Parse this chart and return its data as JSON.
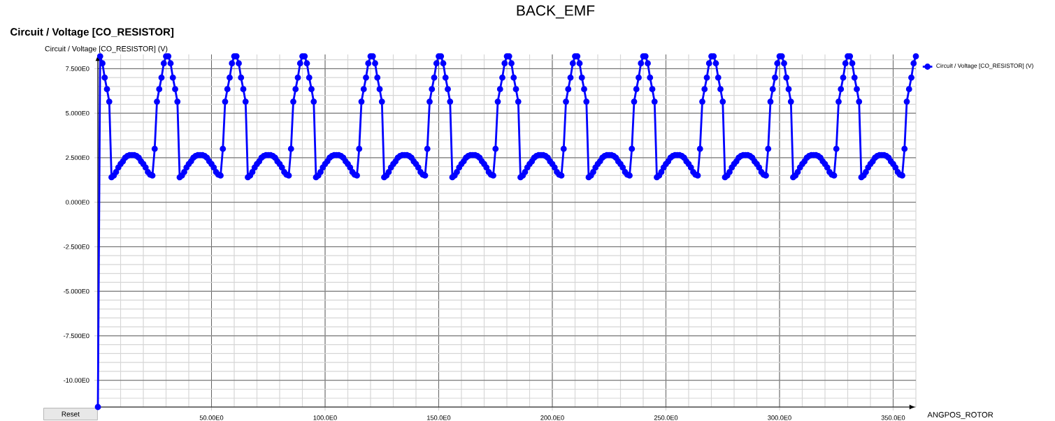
{
  "chart_data": {
    "type": "line",
    "title": "BACK_EMF",
    "subtitle": "Circuit / Voltage [CO_RESISTOR]",
    "ylabel": "Circuit / Voltage [CO_RESISTOR] (V)",
    "xlabel": "ANGPOS_ROTOR",
    "annotations": [
      "Reset"
    ],
    "xlim": [
      0,
      360
    ],
    "ylim": [
      -11.5,
      8.3
    ],
    "xticks": [
      {
        "value": 50,
        "label": "50.00E0"
      },
      {
        "value": 100,
        "label": "100.0E0"
      },
      {
        "value": 150,
        "label": "150.0E0"
      },
      {
        "value": 200,
        "label": "200.0E0"
      },
      {
        "value": 250,
        "label": "250.0E0"
      },
      {
        "value": 300,
        "label": "300.0E0"
      },
      {
        "value": 350,
        "label": "350.0E0"
      }
    ],
    "yticks": [
      {
        "value": -10,
        "label": "-10.00E0"
      },
      {
        "value": -7.5,
        "label": "-7.500E0"
      },
      {
        "value": -5,
        "label": "-5.000E0"
      },
      {
        "value": -2.5,
        "label": "-2.500E0"
      },
      {
        "value": 0,
        "label": "0.000E0"
      },
      {
        "value": 2.5,
        "label": "2.500E0"
      },
      {
        "value": 5,
        "label": "5.000E0"
      },
      {
        "value": 7.5,
        "label": "7.500E0"
      }
    ],
    "grid": true,
    "legend": "top right",
    "marker": "circle",
    "line_style": "solid",
    "x": [
      0,
      1,
      2,
      3,
      4,
      5,
      6,
      7,
      8,
      9,
      10,
      11,
      12,
      13,
      14,
      15,
      16,
      17,
      18,
      19,
      20,
      21,
      22,
      23,
      24,
      25,
      26,
      27,
      28,
      29,
      30,
      31,
      32,
      33,
      34,
      35,
      36,
      37,
      38,
      39,
      40,
      41,
      42,
      43,
      44,
      45,
      46,
      47,
      48,
      49,
      50,
      51,
      52,
      53,
      54,
      55,
      56,
      57,
      58,
      59,
      60,
      61,
      62,
      63,
      64,
      65,
      66,
      67,
      68,
      69,
      70,
      71,
      72,
      73,
      74,
      75,
      76,
      77,
      78,
      79,
      80,
      81,
      82,
      83,
      84,
      85,
      86,
      87,
      88,
      89,
      90,
      91,
      92,
      93,
      94,
      95,
      96,
      97,
      98,
      99,
      100,
      101,
      102,
      103,
      104,
      105,
      106,
      107,
      108,
      109,
      110,
      111,
      112,
      113,
      114,
      115,
      116,
      117,
      118,
      119,
      120,
      121,
      122,
      123,
      124,
      125,
      126,
      127,
      128,
      129,
      130,
      131,
      132,
      133,
      134,
      135,
      136,
      137,
      138,
      139,
      140,
      141,
      142,
      143,
      144,
      145,
      146,
      147,
      148,
      149,
      150,
      151,
      152,
      153,
      154,
      155,
      156,
      157,
      158,
      159,
      160,
      161,
      162,
      163,
      164,
      165,
      166,
      167,
      168,
      169,
      170,
      171,
      172,
      173,
      174,
      175,
      176,
      177,
      178,
      179,
      180,
      181,
      182,
      183,
      184,
      185,
      186,
      187,
      188,
      189,
      190,
      191,
      192,
      193,
      194,
      195,
      196,
      197,
      198,
      199,
      200,
      201,
      202,
      203,
      204,
      205,
      206,
      207,
      208,
      209,
      210,
      211,
      212,
      213,
      214,
      215,
      216,
      217,
      218,
      219,
      220,
      221,
      222,
      223,
      224,
      225,
      226,
      227,
      228,
      229,
      230,
      231,
      232,
      233,
      234,
      235,
      236,
      237,
      238,
      239,
      240,
      241,
      242,
      243,
      244,
      245,
      246,
      247,
      248,
      249,
      250,
      251,
      252,
      253,
      254,
      255,
      256,
      257,
      258,
      259,
      260,
      261,
      262,
      263,
      264,
      265,
      266,
      267,
      268,
      269,
      270,
      271,
      272,
      273,
      274,
      275,
      276,
      277,
      278,
      279,
      280,
      281,
      282,
      283,
      284,
      285,
      286,
      287,
      288,
      289,
      290,
      291,
      292,
      293,
      294,
      295,
      296,
      297,
      298,
      299,
      300,
      301,
      302,
      303,
      304,
      305,
      306,
      307,
      308,
      309,
      310,
      311,
      312,
      313,
      314,
      315,
      316,
      317,
      318,
      319,
      320,
      321,
      322,
      323,
      324,
      325,
      326,
      327,
      328,
      329,
      330,
      331,
      332,
      333,
      334,
      335,
      336,
      337,
      338,
      339,
      340,
      341,
      342,
      343,
      344,
      345,
      346,
      347,
      348,
      349,
      350,
      351,
      352,
      353,
      354,
      355,
      356,
      357,
      358,
      359,
      360
    ],
    "series": [
      {
        "name": "Circuit / Voltage [CO_RESISTOR] (V)",
        "color": "#0000ff",
        "values": [
          -11.5,
          8.2,
          7.8,
          7.0,
          6.35,
          5.65,
          1.4,
          1.5,
          1.7,
          1.95,
          2.15,
          2.3,
          2.5,
          2.6,
          2.65,
          2.65,
          2.65,
          2.6,
          2.5,
          2.3,
          2.15,
          1.95,
          1.7,
          1.55,
          1.5,
          3.0,
          5.65,
          6.35,
          7.0,
          7.8,
          8.2,
          8.2,
          7.8,
          7.0,
          6.35,
          5.65,
          1.4,
          1.5,
          1.7,
          1.95,
          2.15,
          2.3,
          2.5,
          2.6,
          2.65,
          2.65,
          2.65,
          2.6,
          2.5,
          2.3,
          2.15,
          1.95,
          1.7,
          1.55,
          1.5,
          3.0,
          5.65,
          6.35,
          7.0,
          7.8,
          8.2,
          8.2,
          7.8,
          7.0,
          6.35,
          5.65,
          1.4,
          1.5,
          1.7,
          1.95,
          2.15,
          2.3,
          2.5,
          2.6,
          2.65,
          2.65,
          2.65,
          2.6,
          2.5,
          2.3,
          2.15,
          1.95,
          1.7,
          1.55,
          1.5,
          3.0,
          5.65,
          6.35,
          7.0,
          7.8,
          8.2,
          8.2,
          7.8,
          7.0,
          6.35,
          5.65,
          1.4,
          1.5,
          1.7,
          1.95,
          2.15,
          2.3,
          2.5,
          2.6,
          2.65,
          2.65,
          2.65,
          2.6,
          2.5,
          2.3,
          2.15,
          1.95,
          1.7,
          1.55,
          1.5,
          3.0,
          5.65,
          6.35,
          7.0,
          7.8,
          8.2,
          8.2,
          7.8,
          7.0,
          6.35,
          5.65,
          1.4,
          1.5,
          1.7,
          1.95,
          2.15,
          2.3,
          2.5,
          2.6,
          2.65,
          2.65,
          2.65,
          2.6,
          2.5,
          2.3,
          2.15,
          1.95,
          1.7,
          1.55,
          1.5,
          3.0,
          5.65,
          6.35,
          7.0,
          7.8,
          8.2,
          8.2,
          7.8,
          7.0,
          6.35,
          5.65,
          1.4,
          1.5,
          1.7,
          1.95,
          2.15,
          2.3,
          2.5,
          2.6,
          2.65,
          2.65,
          2.65,
          2.6,
          2.5,
          2.3,
          2.15,
          1.95,
          1.7,
          1.55,
          1.5,
          3.0,
          5.65,
          6.35,
          7.0,
          7.8,
          8.2,
          8.2,
          7.8,
          7.0,
          6.35,
          5.65,
          1.4,
          1.5,
          1.7,
          1.95,
          2.15,
          2.3,
          2.5,
          2.6,
          2.65,
          2.65,
          2.65,
          2.6,
          2.5,
          2.3,
          2.15,
          1.95,
          1.7,
          1.55,
          1.5,
          3.0,
          5.65,
          6.35,
          7.0,
          7.8,
          8.2,
          8.2,
          7.8,
          7.0,
          6.35,
          5.65,
          1.4,
          1.5,
          1.7,
          1.95,
          2.15,
          2.3,
          2.5,
          2.6,
          2.65,
          2.65,
          2.65,
          2.6,
          2.5,
          2.3,
          2.15,
          1.95,
          1.7,
          1.55,
          1.5,
          3.0,
          5.65,
          6.35,
          7.0,
          7.8,
          8.2,
          8.2,
          7.8,
          7.0,
          6.35,
          5.65,
          1.4,
          1.5,
          1.7,
          1.95,
          2.15,
          2.3,
          2.5,
          2.6,
          2.65,
          2.65,
          2.65,
          2.6,
          2.5,
          2.3,
          2.15,
          1.95,
          1.7,
          1.55,
          1.5,
          3.0,
          5.65,
          6.35,
          7.0,
          7.8,
          8.2,
          8.2,
          7.8,
          7.0,
          6.35,
          5.65,
          1.4,
          1.5,
          1.7,
          1.95,
          2.15,
          2.3,
          2.5,
          2.6,
          2.65,
          2.65,
          2.65,
          2.6,
          2.5,
          2.3,
          2.15,
          1.95,
          1.7,
          1.55,
          1.5,
          3.0,
          5.65,
          6.35,
          7.0,
          7.8,
          8.2,
          8.2,
          7.8,
          7.0,
          6.35,
          5.65,
          1.4,
          1.5,
          1.7,
          1.95,
          2.15,
          2.3,
          2.5,
          2.6,
          2.65,
          2.65,
          2.65,
          2.6,
          2.5,
          2.3,
          2.15,
          1.95,
          1.7,
          1.55,
          1.5,
          3.0,
          5.65,
          6.35,
          7.0,
          7.8,
          8.2,
          8.2,
          7.8,
          7.0,
          6.35,
          5.65,
          1.4,
          1.5,
          1.7,
          1.95,
          2.15,
          2.3,
          2.5,
          2.6,
          2.65,
          2.65,
          2.65,
          2.6,
          2.5,
          2.3,
          2.15,
          1.95,
          1.7,
          1.55,
          1.5,
          3.0,
          5.65,
          6.35,
          7.0,
          7.8,
          8.2
        ]
      }
    ]
  }
}
